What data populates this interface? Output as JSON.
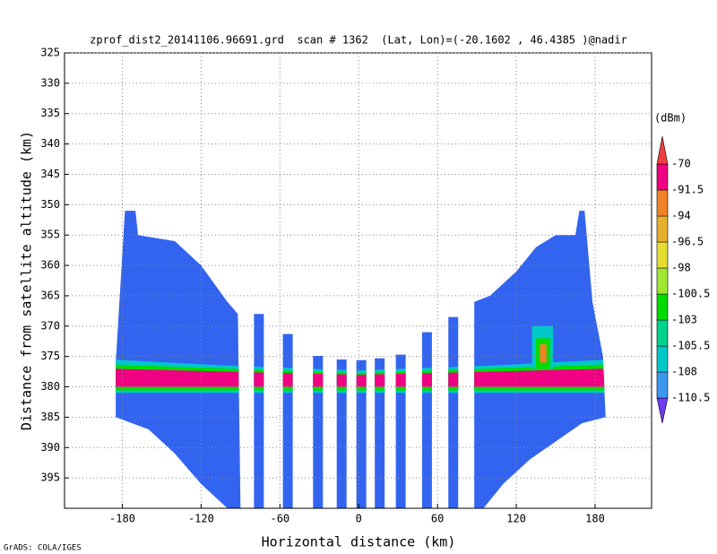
{
  "chart_data": {
    "type": "shaded",
    "title": "zprof_dist2_20141106.96691.grd  scan # 1362  (Lat, Lon)=(-20.1602 , 46.4385 )@nadir",
    "xlabel": "Horizontal distance (km)",
    "ylabel": "Distance from satellite altitude (km)",
    "footer": "GrADS: COLA/IGES",
    "xlim": [
      -224,
      223
    ],
    "xticks": [
      -180,
      -120,
      -60,
      0,
      60,
      120,
      180
    ],
    "ylim": [
      400,
      325
    ],
    "yticks": [
      325,
      330,
      335,
      340,
      345,
      350,
      355,
      360,
      365,
      370,
      375,
      380,
      385,
      390,
      395
    ],
    "grid": true,
    "field_color": "#3264f0",
    "regions": [
      {
        "x": [
          -185,
          -178,
          -170,
          -168,
          -140,
          -120,
          -100,
          -92,
          -90,
          -100,
          -120,
          -140,
          -160,
          -185
        ],
        "y": [
          376,
          351,
          351,
          355,
          356,
          360,
          366,
          368,
          400,
          400,
          396,
          391,
          387,
          385
        ]
      },
      {
        "x": [
          88,
          100,
          120,
          135,
          150,
          165,
          168,
          172,
          178,
          186,
          188,
          170,
          150,
          130,
          110,
          95,
          88
        ],
        "y": [
          366,
          365,
          361,
          357,
          355,
          355,
          351,
          351,
          366,
          375,
          385,
          386,
          389,
          392,
          396,
          400,
          400
        ]
      }
    ],
    "columns": {
      "x": [
        -76,
        -54,
        -31,
        -13,
        2,
        16,
        32,
        52,
        72
      ],
      "width": 7.5,
      "tops": [
        368,
        371.3,
        374.9,
        375.5,
        375.6,
        375.3,
        374.7,
        371,
        368.5
      ]
    },
    "echoes": [
      {
        "color": "#00c8c8",
        "x": [
          -190,
          -100,
          0,
          100,
          190,
          190,
          100,
          0,
          -100,
          -190
        ],
        "y": [
          375.5,
          376.5,
          377.3,
          376.5,
          375.5,
          381,
          381,
          381,
          381,
          381
        ]
      },
      {
        "color": "#00dc00",
        "x": [
          -190,
          -100,
          0,
          100,
          190,
          190,
          100,
          0,
          -100,
          -190
        ],
        "y": [
          376.3,
          377,
          377.7,
          377,
          376.3,
          380.6,
          380.6,
          380.6,
          380.6,
          380.6
        ]
      },
      {
        "color": "#f00082",
        "x": [
          -190,
          -100,
          0,
          100,
          190,
          190,
          100,
          0,
          -100,
          -190
        ],
        "y": [
          377,
          377.5,
          378,
          377.5,
          377,
          380,
          380,
          380,
          380,
          380
        ]
      },
      {
        "color": "#00c8c8",
        "x": [
          132,
          148,
          148,
          132
        ],
        "y": [
          370,
          370,
          377,
          377
        ]
      },
      {
        "color": "#00dc00",
        "x": [
          135,
          146,
          146,
          135
        ],
        "y": [
          372,
          372,
          377,
          377
        ]
      },
      {
        "color": "#f08228",
        "x": [
          138,
          143,
          143,
          138
        ],
        "y": [
          373,
          373,
          376,
          376
        ]
      }
    ],
    "colorbar": {
      "unit": "(dBm)",
      "levels": [
        -110.5,
        -108,
        -105.5,
        -103,
        -100.5,
        -98,
        -96.5,
        -94,
        -91.5,
        -70
      ],
      "colors": [
        "#6e3cf0",
        "#3c96f0",
        "#00c8c8",
        "#00d28c",
        "#00dc00",
        "#a0e632",
        "#e6dc32",
        "#e6af2d",
        "#f08228",
        "#f00082",
        "#f03c3c"
      ]
    }
  }
}
